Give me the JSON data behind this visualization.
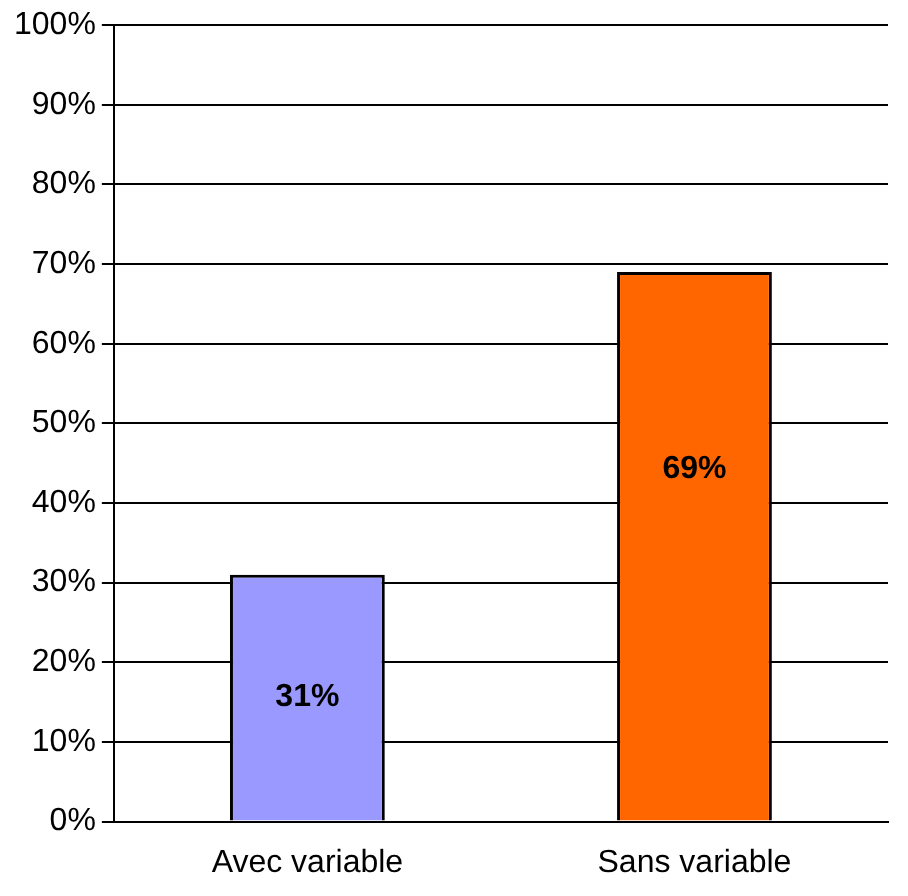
{
  "chart_data": {
    "type": "bar",
    "categories": [
      "Avec variable",
      "Sans variable"
    ],
    "values": [
      31,
      69
    ],
    "colors": [
      "#9999ff",
      "#ff6600"
    ],
    "value_labels": [
      "31%",
      "69%"
    ],
    "ylim": [
      0,
      100
    ],
    "yticks": [
      {
        "value": 0,
        "label": "0%"
      },
      {
        "value": 10,
        "label": "10%"
      },
      {
        "value": 20,
        "label": "20%"
      },
      {
        "value": 30,
        "label": "30%"
      },
      {
        "value": 40,
        "label": "40%"
      },
      {
        "value": 50,
        "label": "50%"
      },
      {
        "value": 60,
        "label": "60%"
      },
      {
        "value": 70,
        "label": "70%"
      },
      {
        "value": 80,
        "label": "80%"
      },
      {
        "value": 90,
        "label": "90%"
      },
      {
        "value": 100,
        "label": "100%"
      }
    ],
    "grid": "y",
    "legend": false
  }
}
